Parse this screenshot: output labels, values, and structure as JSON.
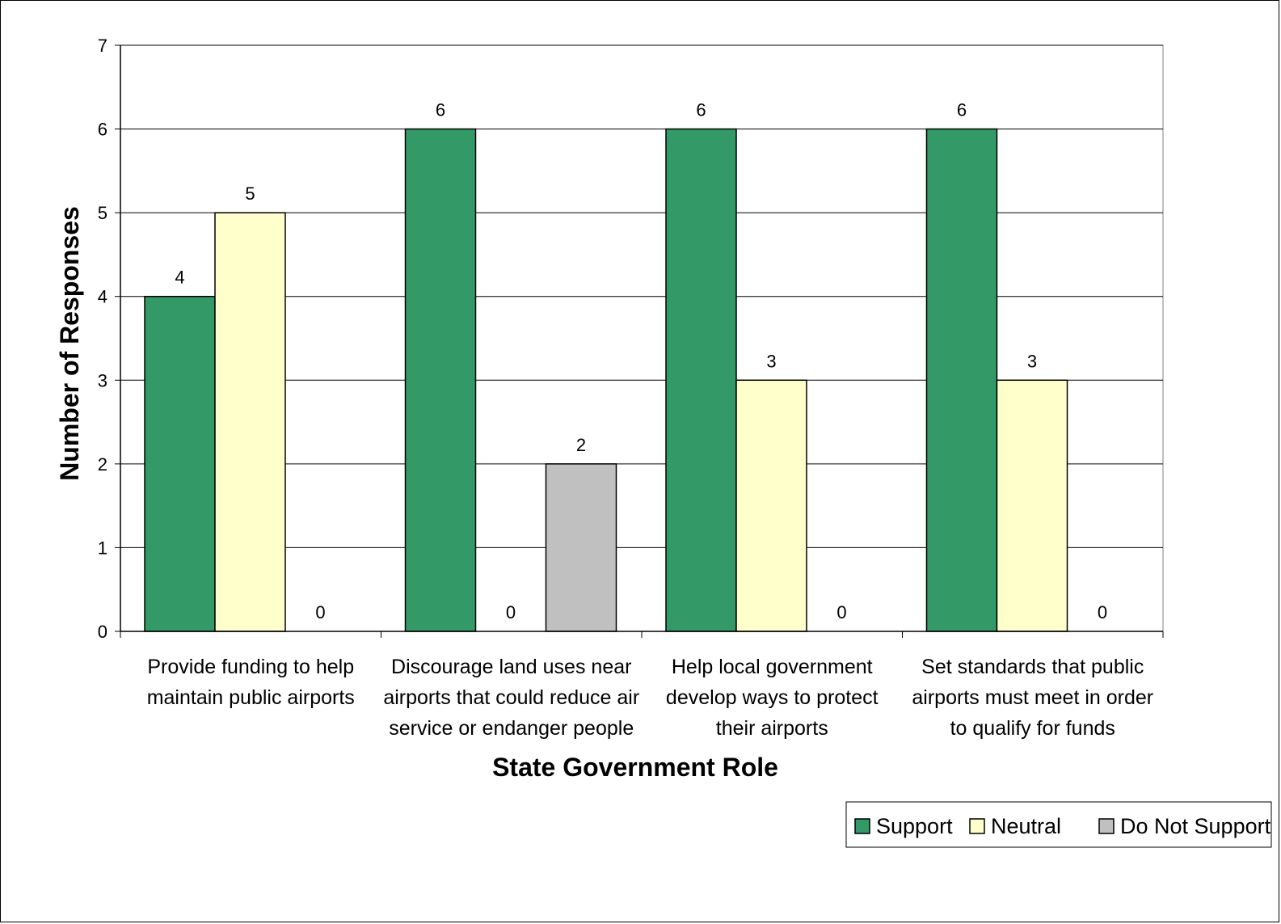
{
  "chart_data": {
    "type": "bar",
    "title": "",
    "xlabel": "State Government Role",
    "ylabel": "Number of Responses",
    "ylim": [
      0,
      7
    ],
    "yticks": [
      0,
      1,
      2,
      3,
      4,
      5,
      6,
      7
    ],
    "grid": true,
    "legend_position": "bottom-right",
    "categories": [
      [
        "Provide funding to help",
        "maintain public airports"
      ],
      [
        "Discourage land uses near",
        "airports that could reduce air",
        "service or endanger people"
      ],
      [
        "Help local government",
        "develop ways to protect",
        "their airports"
      ],
      [
        "Set standards that public",
        "airports must meet in order",
        "to qualify for funds"
      ]
    ],
    "series": [
      {
        "name": "Support",
        "color": "#339966",
        "values": [
          4,
          6,
          6,
          6
        ]
      },
      {
        "name": "Neutral",
        "color": "#FFFFCC",
        "values": [
          5,
          0,
          3,
          3
        ]
      },
      {
        "name": "Do Not Support",
        "color": "#C0C0C0",
        "values": [
          0,
          2,
          0,
          0
        ]
      }
    ],
    "data_labels": true
  }
}
